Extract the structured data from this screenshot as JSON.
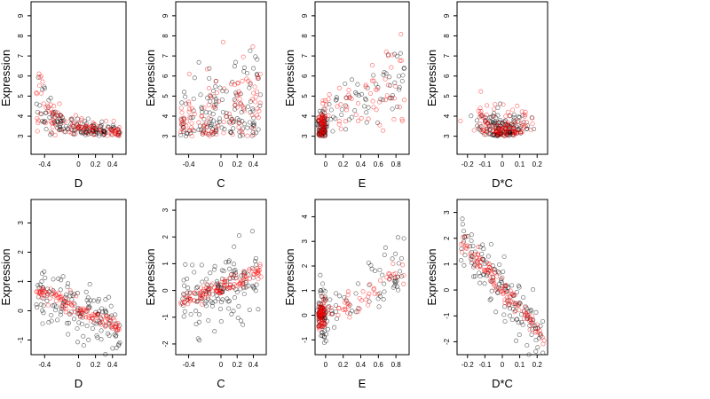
{
  "chart_data": [
    {
      "type": "scatter",
      "xlabel": "D",
      "ylabel": "Expression",
      "xlim": [
        -0.56,
        0.56
      ],
      "ylim": [
        2.1,
        9.7
      ],
      "xticks": [
        -0.4,
        0.0,
        0.2,
        0.4
      ],
      "yticks": [
        3,
        4,
        5,
        6,
        7,
        8,
        9
      ],
      "series": [
        {
          "color": "#000000",
          "pattern": "decay",
          "x_range": [
            -0.5,
            0.5
          ],
          "y_base": 3.0,
          "amp": 3.6,
          "rate": 4.5,
          "spread": 0.45,
          "n": 140
        },
        {
          "color": "#ff0000",
          "pattern": "decay",
          "x_range": [
            -0.5,
            0.5
          ],
          "y_base": 3.0,
          "amp": 3.8,
          "rate": 4.5,
          "spread": 0.55,
          "n": 110
        }
      ]
    },
    {
      "type": "scatter",
      "xlabel": "C",
      "ylabel": "Expression",
      "xlim": [
        -0.56,
        0.56
      ],
      "ylim": [
        2.1,
        9.7
      ],
      "xticks": [
        -0.4,
        0.0,
        0.2,
        0.4
      ],
      "yticks": [
        3,
        4,
        5,
        6,
        7,
        8,
        9
      ],
      "series": [
        {
          "color": "#000000",
          "pattern": "rise",
          "x_range": [
            -0.5,
            0.5
          ],
          "y_base": 3.0,
          "amp": 1.2,
          "rate": 3.0,
          "spread": 0.9,
          "n": 140
        },
        {
          "color": "#ff0000",
          "pattern": "rise",
          "x_range": [
            -0.5,
            0.5
          ],
          "y_base": 3.0,
          "amp": 1.4,
          "rate": 3.0,
          "spread": 0.9,
          "n": 110
        }
      ]
    },
    {
      "type": "scatter",
      "xlabel": "E",
      "ylabel": "Expression",
      "xlim": [
        -0.12,
        0.95
      ],
      "ylim": [
        2.1,
        9.7
      ],
      "xticks": [
        0.0,
        0.2,
        0.4,
        0.6,
        0.8
      ],
      "yticks": [
        3,
        4,
        5,
        6,
        7,
        8,
        9
      ],
      "series": [
        {
          "color": "#000000",
          "pattern": "clusterE",
          "x_range": [
            -0.1,
            0.9
          ],
          "y_base": 3.0,
          "amp": 4.5,
          "rate": 1.0,
          "spread": 0.7,
          "n": 140
        },
        {
          "color": "#ff0000",
          "pattern": "clusterE",
          "x_range": [
            -0.1,
            0.9
          ],
          "y_base": 3.0,
          "amp": 4.5,
          "rate": 1.0,
          "spread": 0.8,
          "n": 110
        }
      ]
    },
    {
      "type": "scatter",
      "xlabel": "D*C",
      "ylabel": "Expression",
      "xlim": [
        -0.26,
        0.26
      ],
      "ylim": [
        2.1,
        9.7
      ],
      "xticks": [
        -0.2,
        -0.1,
        0.0,
        0.1,
        0.2
      ],
      "yticks": [
        3,
        4,
        5,
        6,
        7,
        8,
        9
      ],
      "series": [
        {
          "color": "#000000",
          "pattern": "vshape",
          "x_range": [
            -0.24,
            0.24
          ],
          "y_base": 3.0,
          "amp": 18.0,
          "rate": 1.0,
          "spread": 0.5,
          "n": 140
        },
        {
          "color": "#ff0000",
          "pattern": "vshape",
          "x_range": [
            -0.24,
            0.24
          ],
          "y_base": 3.0,
          "amp": 18.0,
          "rate": 1.0,
          "spread": 0.6,
          "n": 110
        }
      ]
    },
    {
      "type": "scatter",
      "xlabel": "D",
      "ylabel": "Expression",
      "xlim": [
        -0.56,
        0.56
      ],
      "ylim": [
        -1.5,
        3.8
      ],
      "xticks": [
        -0.4,
        0.0,
        0.2,
        0.4
      ],
      "yticks": [
        -1,
        0,
        1,
        2,
        3
      ],
      "series": [
        {
          "color": "#000000",
          "pattern": "linear",
          "x_range": [
            -0.5,
            0.5
          ],
          "y_base": 0.0,
          "amp": -1.5,
          "rate": 1.0,
          "spread": 0.5,
          "n": 140
        },
        {
          "color": "#ff0000",
          "pattern": "linear",
          "x_range": [
            -0.5,
            0.5
          ],
          "y_base": 0.05,
          "amp": -1.4,
          "rate": 1.0,
          "spread": 0.15,
          "n": 110
        }
      ]
    },
    {
      "type": "scatter",
      "xlabel": "C",
      "ylabel": "Expression",
      "xlim": [
        -0.56,
        0.56
      ],
      "ylim": [
        -2.4,
        3.4
      ],
      "xticks": [
        -0.4,
        0.0,
        0.2,
        0.4
      ],
      "yticks": [
        -2,
        -1,
        0,
        1,
        2,
        3
      ],
      "series": [
        {
          "color": "#000000",
          "pattern": "linear",
          "x_range": [
            -0.5,
            0.5
          ],
          "y_base": 0.0,
          "amp": 1.2,
          "rate": 1.0,
          "spread": 0.6,
          "n": 140
        },
        {
          "color": "#ff0000",
          "pattern": "linear",
          "x_range": [
            -0.5,
            0.5
          ],
          "y_base": 0.1,
          "amp": 1.2,
          "rate": 1.0,
          "spread": 0.15,
          "n": 110
        }
      ]
    },
    {
      "type": "scatter",
      "xlabel": "E",
      "ylabel": "Expression",
      "xlim": [
        -0.12,
        0.95
      ],
      "ylim": [
        -1.6,
        4.7
      ],
      "xticks": [
        0.0,
        0.2,
        0.4,
        0.6,
        0.8
      ],
      "yticks": [
        -1,
        0,
        1,
        2,
        3,
        4
      ],
      "series": [
        {
          "color": "#000000",
          "pattern": "clusterE2",
          "x_range": [
            -0.1,
            0.9
          ],
          "y_base": 0.0,
          "amp": 2.0,
          "rate": 1.0,
          "spread": 0.6,
          "n": 140
        },
        {
          "color": "#ff0000",
          "pattern": "clusterE2",
          "x_range": [
            -0.1,
            0.9
          ],
          "y_base": 0.0,
          "amp": 2.0,
          "rate": 1.0,
          "spread": 0.3,
          "n": 110
        }
      ]
    },
    {
      "type": "scatter",
      "xlabel": "D*C",
      "ylabel": "Expression",
      "xlim": [
        -0.26,
        0.26
      ],
      "ylim": [
        -2.5,
        3.5
      ],
      "xticks": [
        -0.2,
        -0.1,
        0.0,
        0.1,
        0.2
      ],
      "yticks": [
        -2,
        -1,
        0,
        1,
        2,
        3
      ],
      "series": [
        {
          "color": "#000000",
          "pattern": "linear",
          "x_range": [
            -0.24,
            0.24
          ],
          "y_base": 0.0,
          "amp": -8.0,
          "rate": 1.0,
          "spread": 0.5,
          "n": 140
        },
        {
          "color": "#ff0000",
          "pattern": "linear",
          "x_range": [
            -0.24,
            0.24
          ],
          "y_base": 0.05,
          "amp": -8.0,
          "rate": 1.0,
          "spread": 0.2,
          "n": 110
        }
      ]
    }
  ]
}
